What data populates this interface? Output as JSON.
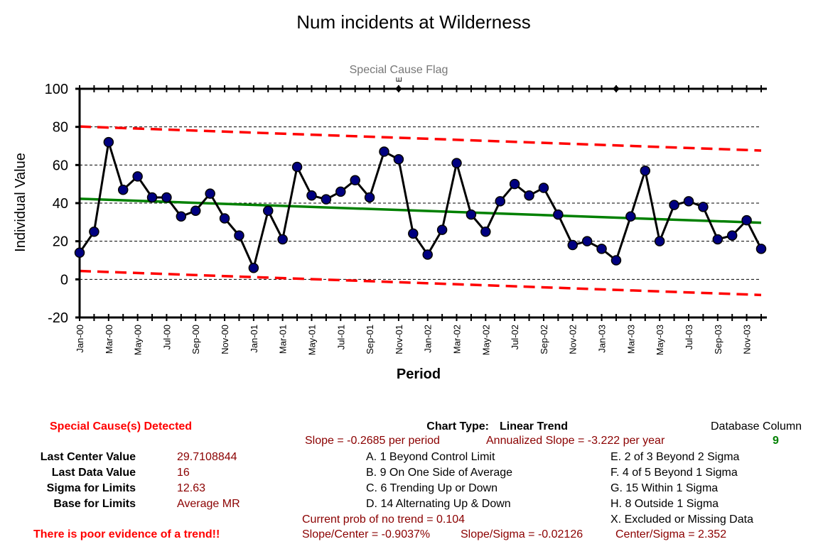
{
  "chart_data": {
    "type": "line",
    "title": "Num incidents at Wilderness",
    "xlabel": "Period",
    "ylabel": "Individual Value",
    "ylim": [
      -20,
      100
    ],
    "yticks": [
      -20,
      0,
      20,
      40,
      60,
      80,
      100
    ],
    "special_cause_label": "Special Cause Flag",
    "special_cause_markers": [
      {
        "period": "Nov-01",
        "letter": "E"
      },
      {
        "period": "Feb-03",
        "letter": ""
      }
    ],
    "x_tick_labels": [
      "Jan-00",
      "Mar-00",
      "May-00",
      "Jul-00",
      "Sep-00",
      "Nov-00",
      "Jan-01",
      "Mar-01",
      "May-01",
      "Jul-01",
      "Sep-01",
      "Nov-01",
      "Jan-02",
      "Mar-02",
      "May-02",
      "Jul-02",
      "Sep-02",
      "Nov-02",
      "Jan-03",
      "Mar-03",
      "May-03",
      "Jul-03",
      "Sep-03",
      "Nov-03"
    ],
    "periods": [
      "Jan-00",
      "Feb-00",
      "Mar-00",
      "Apr-00",
      "May-00",
      "Jun-00",
      "Jul-00",
      "Aug-00",
      "Sep-00",
      "Oct-00",
      "Nov-00",
      "Dec-00",
      "Jan-01",
      "Feb-01",
      "Mar-01",
      "Apr-01",
      "May-01",
      "Jun-01",
      "Jul-01",
      "Aug-01",
      "Sep-01",
      "Oct-01",
      "Nov-01",
      "Dec-01",
      "Jan-02",
      "Feb-02",
      "Mar-02",
      "Apr-02",
      "May-02",
      "Jun-02",
      "Jul-02",
      "Aug-02",
      "Sep-02",
      "Oct-02",
      "Nov-02",
      "Dec-02",
      "Jan-03",
      "Feb-03",
      "Mar-03",
      "Apr-03",
      "May-03",
      "Jun-03",
      "Jul-03",
      "Aug-03",
      "Sep-03",
      "Oct-03",
      "Nov-03",
      "Dec-03"
    ],
    "series": [
      {
        "values": [
          14,
          25,
          72,
          47,
          54,
          43,
          43,
          33,
          36,
          45,
          32,
          23,
          6,
          36,
          21,
          59,
          44,
          42,
          46,
          52,
          43,
          67,
          63,
          24,
          13,
          26,
          61,
          34,
          25,
          41,
          50,
          44,
          48,
          34,
          18,
          20,
          16,
          10,
          33,
          57,
          20,
          39,
          41,
          38,
          21,
          23,
          31,
          16
        ],
        "color": "#000000",
        "marker_color": "#000080"
      }
    ],
    "center_line": {
      "start": 42.3,
      "end": 29.71,
      "color": "#008000"
    },
    "upper_limit": {
      "start": 80.2,
      "end": 67.6,
      "color": "#ff0000"
    },
    "lower_limit": {
      "start": 4.4,
      "end": -8.2,
      "color": "#ff0000"
    },
    "grid": true
  },
  "footer": {
    "special_causes": "Special Cause(s) Detected",
    "chart_type_label": "Chart Type:",
    "chart_type_value": "Linear Trend",
    "database_column_label": "Database Column",
    "database_column_value": "9",
    "slope": "Slope = -0.2685 per period",
    "annualized_slope": "Annualized Slope = -3.222 per year",
    "stats": [
      {
        "label": "Last Center Value",
        "value": "29.7108844"
      },
      {
        "label": "Last Data Value",
        "value": "16"
      },
      {
        "label": "Sigma for Limits",
        "value": "12.63"
      },
      {
        "label": "Base for Limits",
        "value": "Average MR"
      }
    ],
    "rules_left": [
      "A.  1 Beyond Control Limit",
      "B.  9 On One Side of Average",
      "C.  6 Trending Up or Down",
      "D.  14 Alternating  Up & Down"
    ],
    "rules_right": [
      "E.  2 of 3 Beyond 2 Sigma",
      "F.  4 of 5 Beyond 1 Sigma",
      "G.  15 Within 1 Sigma",
      "H.  8 Outside 1 Sigma",
      "X.  Excluded or Missing Data"
    ],
    "prob_no_trend": "Current prob of no trend = 0.104",
    "slope_center": "Slope/Center = -0.9037%",
    "slope_sigma": "Slope/Sigma = -0.02126",
    "center_sigma": "Center/Sigma = 2.352",
    "trend_note": "There is poor evidence of a trend!!"
  }
}
